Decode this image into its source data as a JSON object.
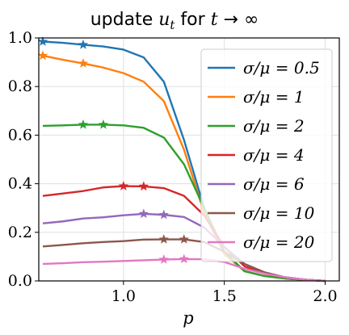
{
  "chart_data": {
    "type": "line",
    "title": "update u_t for t → ∞",
    "title_parts": {
      "text": "update ",
      "math_u": "u",
      "math_sub": "t",
      "text_for": " for ",
      "math_t": "t",
      "arrow": " → ∞"
    },
    "xlabel": "p",
    "ylabel": "",
    "xlim": [
      0.58,
      2.07
    ],
    "ylim": [
      0.0,
      1.0
    ],
    "xticks": [
      1.0,
      1.5,
      2.0
    ],
    "xtick_labels": [
      "1.0",
      "1.5",
      "2.0"
    ],
    "yticks": [
      0.0,
      0.2,
      0.4,
      0.6,
      0.8,
      1.0
    ],
    "ytick_labels": [
      "0.0",
      "0.2",
      "0.4",
      "0.6",
      "0.8",
      "1.0"
    ],
    "grid": true,
    "legend_position": "right",
    "x": [
      0.6,
      0.7,
      0.8,
      0.9,
      1.0,
      1.1,
      1.2,
      1.3,
      1.4,
      1.5,
      1.6,
      1.7,
      1.8,
      1.9,
      2.0
    ],
    "series": [
      {
        "name": "σ/μ = 0.5",
        "color": "#1f77b4",
        "values": [
          0.985,
          0.98,
          0.972,
          0.965,
          0.952,
          0.92,
          0.82,
          0.58,
          0.3,
          0.12,
          0.04,
          0.02,
          0.01,
          0.005,
          0.0
        ],
        "star_x": [
          0.6,
          0.8
        ]
      },
      {
        "name": "σ/μ = 1",
        "color": "#ff7f0e",
        "values": [
          0.927,
          0.91,
          0.895,
          0.878,
          0.855,
          0.82,
          0.74,
          0.54,
          0.28,
          0.11,
          0.04,
          0.02,
          0.01,
          0.005,
          0.0
        ],
        "star_x": [
          0.6,
          0.8
        ]
      },
      {
        "name": "σ/μ = 2",
        "color": "#2ca02c",
        "values": [
          0.638,
          0.64,
          0.643,
          0.643,
          0.64,
          0.63,
          0.59,
          0.48,
          0.3,
          0.12,
          0.04,
          0.02,
          0.01,
          0.005,
          0.0
        ],
        "star_x": [
          0.8,
          0.9
        ]
      },
      {
        "name": "σ/μ = 4",
        "color": "#d62728",
        "values": [
          0.35,
          0.36,
          0.37,
          0.385,
          0.39,
          0.389,
          0.382,
          0.35,
          0.27,
          0.14,
          0.06,
          0.03,
          0.015,
          0.005,
          0.0
        ],
        "star_x": [
          1.0,
          1.1
        ]
      },
      {
        "name": "σ/μ = 6",
        "color": "#9467bd",
        "values": [
          0.237,
          0.245,
          0.257,
          0.262,
          0.27,
          0.276,
          0.272,
          0.263,
          0.22,
          0.14,
          0.07,
          0.035,
          0.015,
          0.005,
          0.0
        ],
        "star_x": [
          1.1,
          1.2
        ]
      },
      {
        "name": "σ/μ = 10",
        "color": "#8c564b",
        "values": [
          0.142,
          0.148,
          0.155,
          0.16,
          0.164,
          0.17,
          0.171,
          0.171,
          0.16,
          0.12,
          0.07,
          0.035,
          0.015,
          0.005,
          0.0
        ],
        "star_x": [
          1.2,
          1.3
        ]
      },
      {
        "name": "σ/μ = 20",
        "color": "#e377c2",
        "values": [
          0.07,
          0.073,
          0.077,
          0.079,
          0.082,
          0.085,
          0.088,
          0.09,
          0.089,
          0.078,
          0.05,
          0.03,
          0.015,
          0.005,
          0.0
        ],
        "star_x": [
          1.2,
          1.3
        ]
      }
    ]
  }
}
